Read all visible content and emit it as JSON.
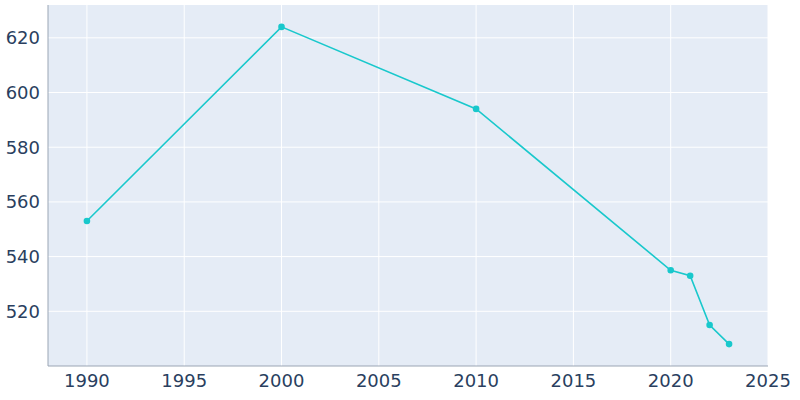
{
  "chart_data": {
    "type": "line",
    "x": [
      1990,
      2000,
      2010,
      2020,
      2021,
      2022,
      2023
    ],
    "values": [
      553,
      624,
      594,
      535,
      533,
      515,
      508
    ],
    "color": "#19c8cc",
    "marker": "circle",
    "xlim": [
      1988,
      2025
    ],
    "xticks": [
      1990,
      1995,
      2000,
      2005,
      2010,
      2015,
      2020,
      2025
    ],
    "ylim": [
      500,
      632
    ],
    "yticks": [
      520,
      540,
      560,
      580,
      600,
      620
    ],
    "grid": true
  }
}
